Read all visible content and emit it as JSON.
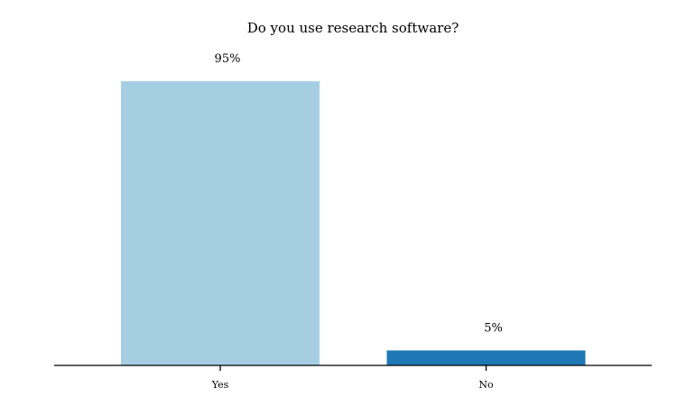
{
  "chart_data": {
    "type": "bar",
    "title": "Do you use research software?",
    "xlabel": "",
    "ylabel": "",
    "categories": [
      "Yes",
      "No"
    ],
    "values": [
      95,
      5
    ],
    "value_labels": [
      "95%",
      "5%"
    ],
    "colors": [
      "#a6cee3",
      "#1f78b4"
    ],
    "ylim": [
      0,
      100
    ],
    "grid": false,
    "legend": "none"
  }
}
